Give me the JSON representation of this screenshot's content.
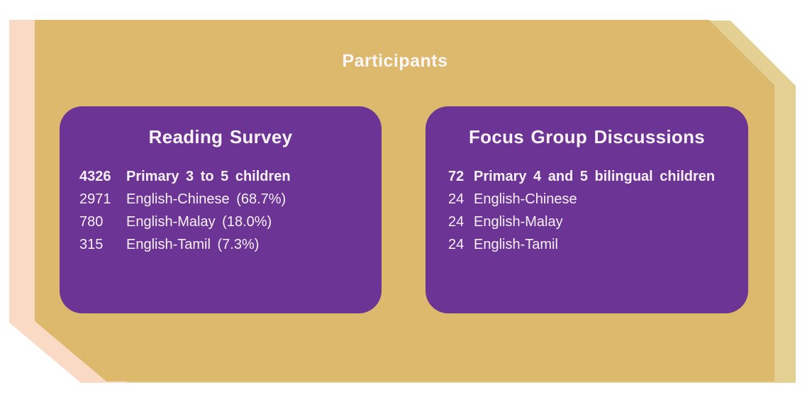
{
  "slide": {
    "title": "Participants",
    "colors": {
      "background": "#FFFFFF",
      "main_banner": "#DCB96C",
      "banner_shadow_right": "#E5D094",
      "banner_shadow_left": "#FADAC4",
      "box_fill": "#6C3494",
      "text": "#F7F0F4"
    },
    "boxes": [
      {
        "title": "Reading Survey",
        "rows": [
          {
            "value": "4326",
            "label": "Primary 3 to 5 children"
          },
          {
            "value": "2971",
            "label": "English-Chinese (68.7%)"
          },
          {
            "value": "780",
            "label": "English-Malay (18.0%)"
          },
          {
            "value": "315",
            "label": "English-Tamil (7.3%)"
          }
        ]
      },
      {
        "title": "Focus Group Discussions",
        "rows": [
          {
            "value": "72",
            "label": "Primary 4 and 5 bilingual children"
          },
          {
            "value": "24",
            "label": "English-Chinese"
          },
          {
            "value": "24",
            "label": "English-Malay"
          },
          {
            "value": "24",
            "label": "English-Tamil"
          }
        ]
      }
    ]
  }
}
